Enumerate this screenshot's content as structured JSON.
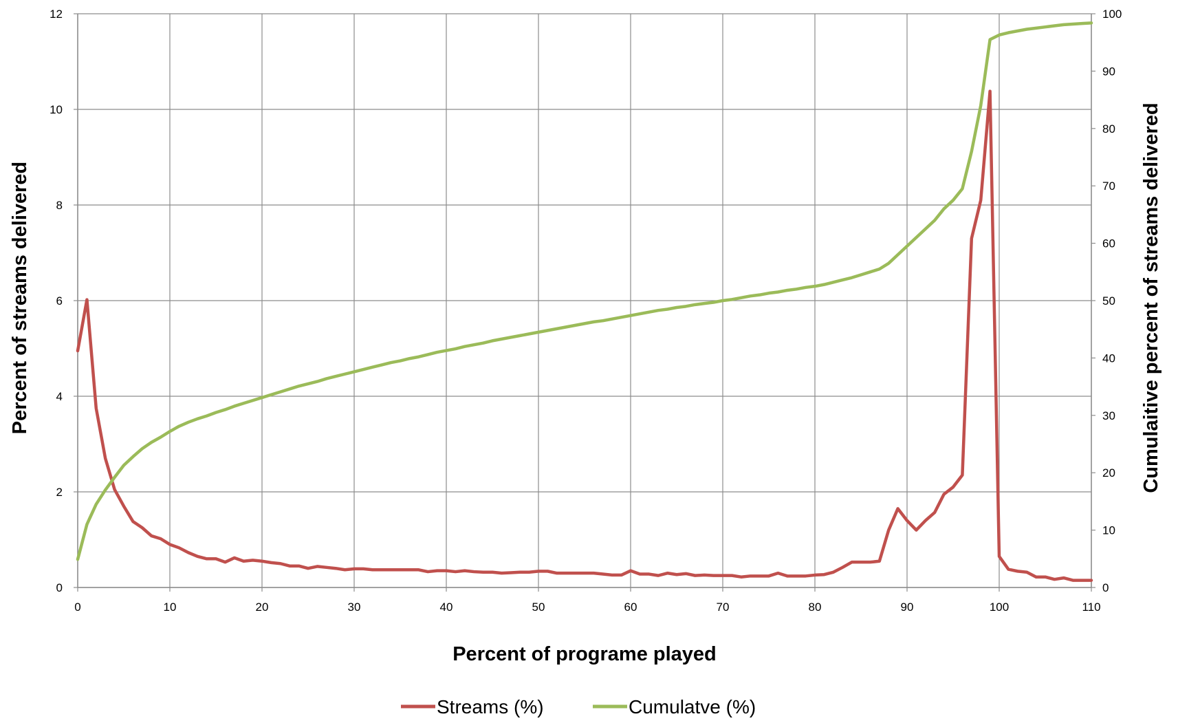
{
  "chart_data": {
    "type": "line",
    "title": "",
    "xlabel": "Percent of programe played",
    "ylabel": "Percent of streams delivered",
    "y2label": "Cumulaitive  percent of streams delivered",
    "xlim": [
      0,
      110
    ],
    "ylim": [
      0,
      12
    ],
    "y2lim": [
      0,
      100
    ],
    "x_ticks": [
      0,
      10,
      20,
      30,
      40,
      50,
      60,
      70,
      80,
      90,
      100,
      110
    ],
    "y_ticks": [
      0,
      2,
      4,
      6,
      8,
      10,
      12
    ],
    "y2_ticks": [
      0,
      10,
      20,
      30,
      40,
      50,
      60,
      70,
      80,
      90,
      100
    ],
    "grid": true,
    "legend_position": "bottom",
    "x": [
      0,
      1,
      2,
      3,
      4,
      5,
      6,
      7,
      8,
      9,
      10,
      11,
      12,
      13,
      14,
      15,
      16,
      17,
      18,
      19,
      20,
      21,
      22,
      23,
      24,
      25,
      26,
      27,
      28,
      29,
      30,
      31,
      32,
      33,
      34,
      35,
      36,
      37,
      38,
      39,
      40,
      41,
      42,
      43,
      44,
      45,
      46,
      47,
      48,
      49,
      50,
      51,
      52,
      53,
      54,
      55,
      56,
      57,
      58,
      59,
      60,
      61,
      62,
      63,
      64,
      65,
      66,
      67,
      68,
      69,
      70,
      71,
      72,
      73,
      74,
      75,
      76,
      77,
      78,
      79,
      80,
      81,
      82,
      83,
      84,
      85,
      86,
      87,
      88,
      89,
      90,
      91,
      92,
      93,
      94,
      95,
      96,
      97,
      98,
      99,
      100,
      101,
      102,
      103,
      104,
      105,
      106,
      107,
      108,
      109,
      110
    ],
    "series": [
      {
        "name": "Streams (%)",
        "axis": "left",
        "color": "#c0504d",
        "values": [
          4.95,
          6.02,
          3.75,
          2.7,
          2.05,
          1.7,
          1.38,
          1.25,
          1.08,
          1.02,
          0.9,
          0.83,
          0.73,
          0.65,
          0.6,
          0.6,
          0.53,
          0.62,
          0.55,
          0.57,
          0.55,
          0.52,
          0.5,
          0.45,
          0.45,
          0.4,
          0.44,
          0.42,
          0.4,
          0.37,
          0.39,
          0.39,
          0.37,
          0.37,
          0.37,
          0.37,
          0.37,
          0.37,
          0.33,
          0.35,
          0.35,
          0.33,
          0.35,
          0.33,
          0.32,
          0.32,
          0.3,
          0.31,
          0.32,
          0.32,
          0.34,
          0.34,
          0.3,
          0.3,
          0.3,
          0.3,
          0.3,
          0.28,
          0.26,
          0.26,
          0.35,
          0.28,
          0.28,
          0.25,
          0.3,
          0.27,
          0.29,
          0.25,
          0.26,
          0.25,
          0.25,
          0.25,
          0.22,
          0.24,
          0.24,
          0.24,
          0.3,
          0.24,
          0.24,
          0.24,
          0.26,
          0.27,
          0.32,
          0.42,
          0.53,
          0.53,
          0.53,
          0.55,
          1.2,
          1.65,
          1.4,
          1.2,
          1.4,
          1.57,
          1.95,
          2.1,
          2.35,
          7.3,
          8.1,
          10.38,
          0.65,
          0.38,
          0.34,
          0.32,
          0.22,
          0.22,
          0.17,
          0.2,
          0.15,
          0.15,
          0.15
        ]
      },
      {
        "name": "Cumulatve (%)",
        "axis": "right",
        "color": "#9bbb59",
        "values": [
          4.9,
          11,
          14.5,
          17,
          19.2,
          21.3,
          22.8,
          24.2,
          25.3,
          26.2,
          27.2,
          28.1,
          28.8,
          29.4,
          29.9,
          30.5,
          31,
          31.6,
          32.1,
          32.6,
          33.1,
          33.6,
          34.1,
          34.6,
          35.1,
          35.5,
          35.9,
          36.4,
          36.8,
          37.2,
          37.6,
          38,
          38.4,
          38.8,
          39.2,
          39.5,
          39.9,
          40.2,
          40.6,
          41,
          41.3,
          41.6,
          42,
          42.3,
          42.6,
          43,
          43.3,
          43.6,
          43.9,
          44.2,
          44.5,
          44.8,
          45.1,
          45.4,
          45.7,
          46,
          46.3,
          46.5,
          46.8,
          47.1,
          47.4,
          47.7,
          48,
          48.3,
          48.5,
          48.8,
          49,
          49.3,
          49.5,
          49.7,
          50,
          50.2,
          50.5,
          50.8,
          51,
          51.3,
          51.5,
          51.8,
          52,
          52.3,
          52.5,
          52.8,
          53.2,
          53.6,
          54,
          54.5,
          55,
          55.5,
          56.5,
          58,
          59.5,
          61,
          62.5,
          64,
          66,
          67.5,
          69.5,
          76,
          84,
          95.5,
          96.3,
          96.7,
          97,
          97.3,
          97.5,
          97.7,
          97.9,
          98.1,
          98.2,
          98.3,
          98.4
        ]
      }
    ]
  }
}
